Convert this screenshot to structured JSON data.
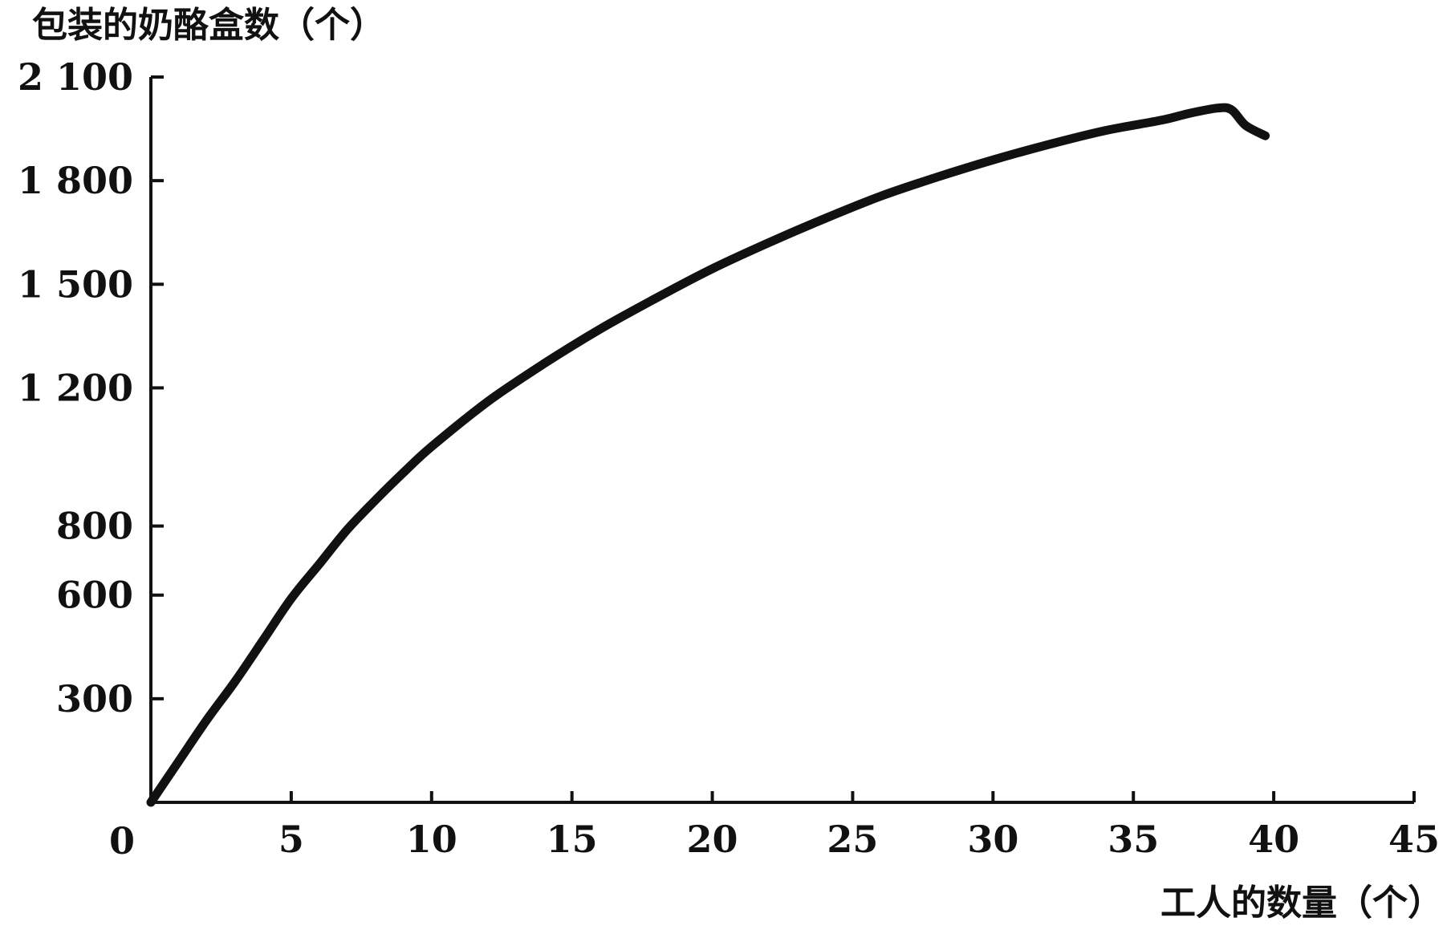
{
  "chart_data": {
    "type": "line",
    "title": "",
    "ylabel": "包装的奶酪盒数（个）",
    "xlabel": "工人的数量（个）",
    "origin_label": "0",
    "xlim": [
      0,
      45
    ],
    "ylim": [
      0,
      2100
    ],
    "xticks": [
      5,
      10,
      15,
      20,
      25,
      30,
      35,
      40,
      45
    ],
    "xtick_labels": [
      "5",
      "10",
      "15",
      "20",
      "25",
      "30",
      "35",
      "40",
      "45"
    ],
    "yticks": [
      300,
      600,
      800,
      1200,
      1500,
      1800,
      2100
    ],
    "ytick_labels": [
      "300",
      "600",
      "800",
      "1 200",
      "1 500",
      "1 800",
      "2 100"
    ],
    "grid": false,
    "series": [
      {
        "color": "#111111",
        "x": [
          0,
          1,
          2,
          3,
          4,
          5,
          6,
          7,
          8,
          9,
          10,
          12,
          14,
          16,
          18,
          20,
          22,
          24,
          26,
          28,
          30,
          32,
          34,
          36,
          37,
          38,
          38.5,
          39,
          39.7
        ],
        "y": [
          0,
          120,
          240,
          350,
          470,
          590,
          690,
          790,
          875,
          955,
          1030,
          1160,
          1270,
          1370,
          1460,
          1545,
          1620,
          1690,
          1755,
          1810,
          1860,
          1905,
          1945,
          1975,
          1995,
          2010,
          2005,
          1960,
          1930
        ]
      }
    ]
  }
}
